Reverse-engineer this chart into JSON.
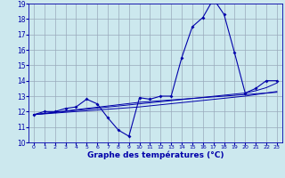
{
  "xlabel": "Graphe des températures (°C)",
  "background_color": "#cce8ee",
  "plot_bg_color": "#cce8ee",
  "grid_color": "#99aabb",
  "line_color": "#0000aa",
  "xlim": [
    -0.5,
    23.5
  ],
  "ylim": [
    10,
    19
  ],
  "yticks": [
    10,
    11,
    12,
    13,
    14,
    15,
    16,
    17,
    18,
    19
  ],
  "xticks": [
    0,
    1,
    2,
    3,
    4,
    5,
    6,
    7,
    8,
    9,
    10,
    11,
    12,
    13,
    14,
    15,
    16,
    17,
    18,
    19,
    20,
    21,
    22,
    23
  ],
  "main_temps": [
    11.8,
    12.0,
    12.0,
    12.2,
    12.3,
    12.8,
    12.5,
    11.6,
    10.8,
    10.4,
    12.9,
    12.8,
    13.0,
    13.0,
    15.5,
    17.5,
    18.1,
    19.3,
    18.3,
    15.8,
    13.2,
    13.5,
    14.0,
    14.0
  ],
  "trend1": [
    11.8,
    11.88,
    11.96,
    12.04,
    12.12,
    12.2,
    12.28,
    12.36,
    12.44,
    12.52,
    12.6,
    12.65,
    12.7,
    12.75,
    12.8,
    12.85,
    12.9,
    12.95,
    13.0,
    13.05,
    13.1,
    13.15,
    13.2,
    13.25
  ],
  "trend2": [
    11.8,
    11.85,
    11.9,
    11.95,
    12.0,
    12.05,
    12.1,
    12.15,
    12.2,
    12.25,
    12.3,
    12.37,
    12.44,
    12.51,
    12.58,
    12.65,
    12.72,
    12.79,
    12.86,
    12.93,
    13.0,
    13.1,
    13.2,
    13.3
  ],
  "trend3": [
    11.8,
    11.87,
    11.94,
    12.01,
    12.08,
    12.15,
    12.22,
    12.29,
    12.36,
    12.43,
    12.5,
    12.57,
    12.64,
    12.71,
    12.78,
    12.85,
    12.92,
    12.99,
    13.06,
    13.13,
    13.2,
    13.35,
    13.55,
    13.85
  ]
}
